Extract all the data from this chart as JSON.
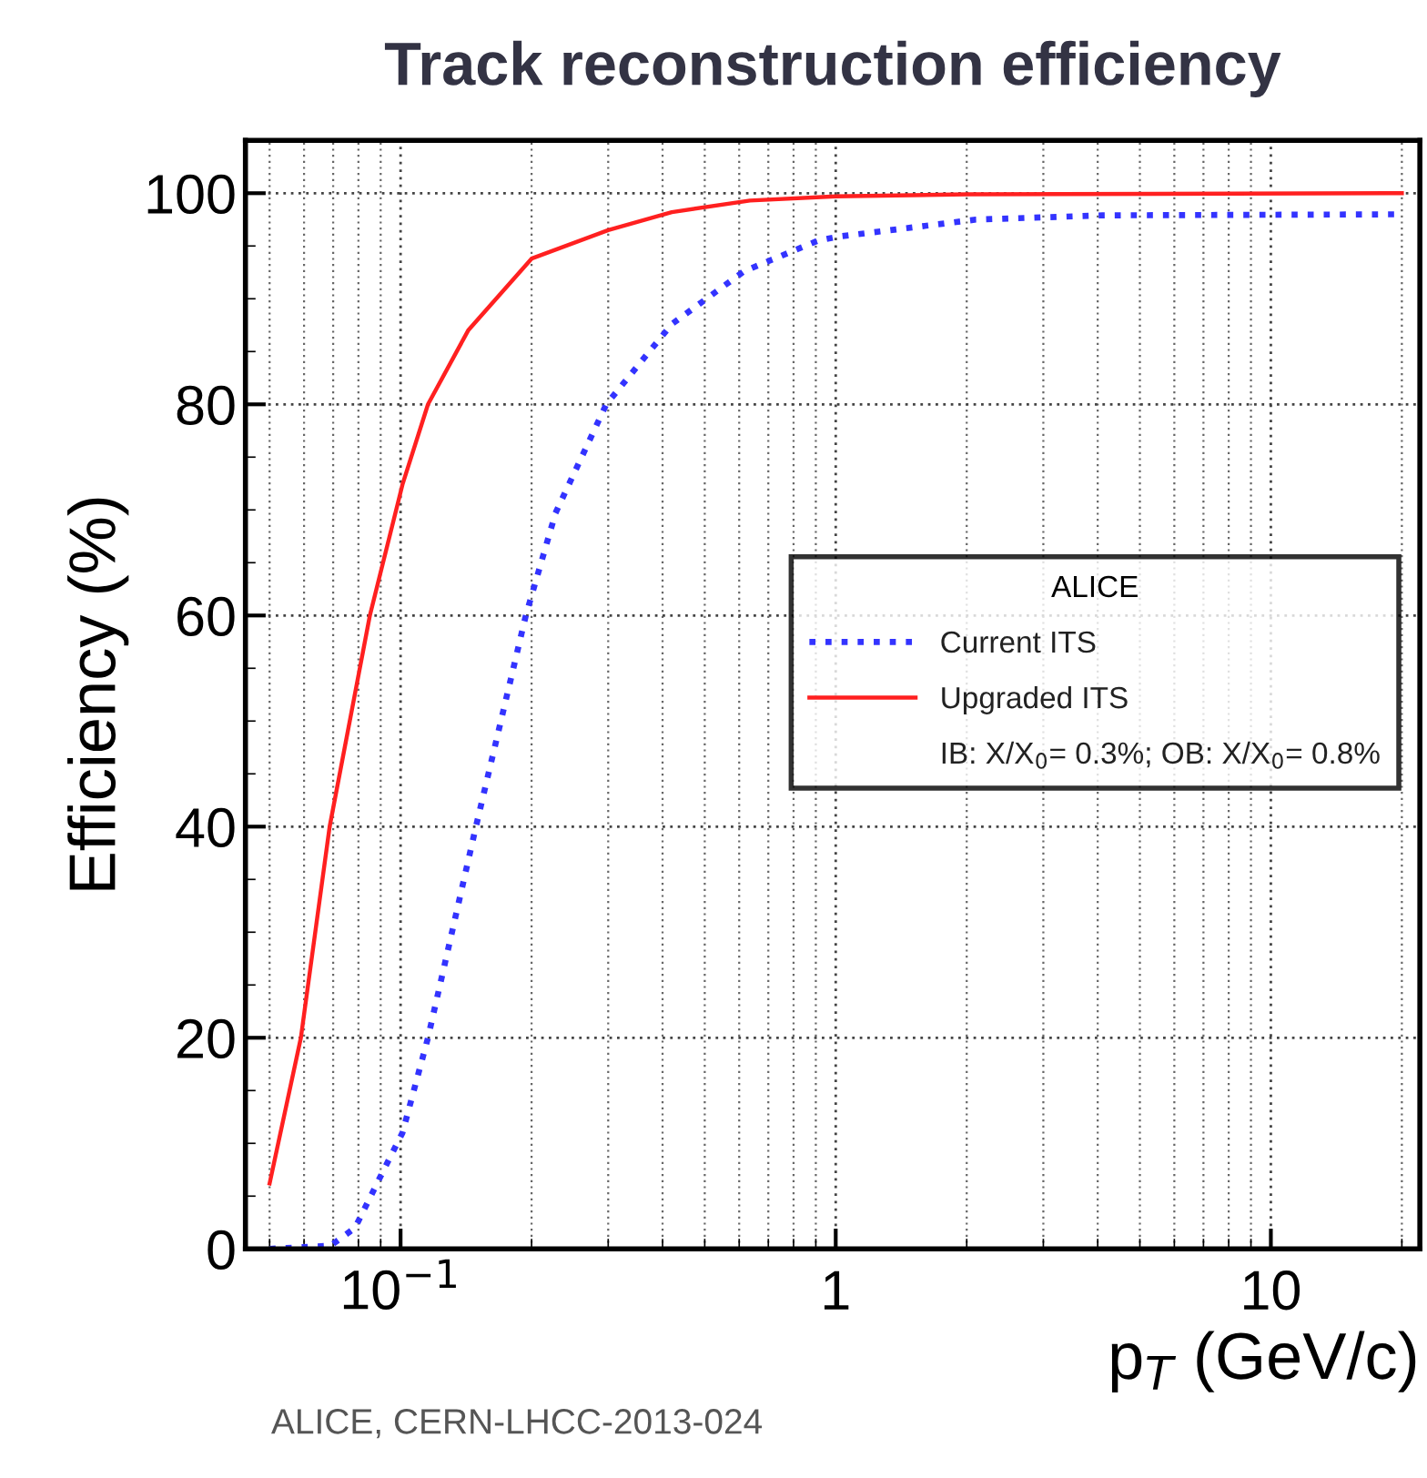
{
  "chart_data": {
    "type": "line",
    "title": "Track reconstruction efficiency",
    "xlabel": "p$_{T}$ (GeV/c)",
    "ylabel": "Efficiency (%)",
    "legend_title": "ALICE",
    "annotations": [
      "IB: X/X$_{0}$= 0.3%; OB: X/X$_{0}$= 0.8%",
      "ALICE, CERN-LHCC-2013-024"
    ],
    "log": "x",
    "xlim": [
      0.044,
      22
    ],
    "ylim": [
      0,
      105
    ],
    "xticks": [
      {
        "value": 0.1,
        "label": "10$^{−1}$"
      },
      1,
      10
    ],
    "yticks": [
      0,
      20,
      40,
      60,
      80,
      100
    ],
    "grid": true,
    "legend": "right",
    "series": [
      {
        "name": "Current ITS",
        "color": "#3333ff",
        "line_style": "dotted",
        "x": [
          0.05,
          0.069,
          0.0786,
          0.09,
          0.101,
          0.1156,
          0.149,
          0.194,
          0.227,
          0.297,
          0.42,
          0.615,
          0.91,
          1.02,
          2.1,
          4.1,
          20
        ],
        "values": [
          0,
          0.3,
          2,
          6.9,
          11,
          20,
          40,
          60,
          69.7,
          80,
          87.6,
          92.6,
          95.5,
          95.9,
          97.5,
          97.9,
          98
        ]
      },
      {
        "name": "Upgraded ITS",
        "color": "#ff2020",
        "line_style": "solid",
        "x": [
          0.05,
          0.059,
          0.0687,
          0.085,
          0.101,
          0.1156,
          0.143,
          0.2,
          0.3,
          0.42,
          0.635,
          1,
          2,
          20
        ],
        "values": [
          6.2,
          20,
          40,
          60,
          72.4,
          80,
          87,
          93.8,
          96.5,
          98.2,
          99.3,
          99.7,
          99.9,
          100
        ]
      }
    ]
  }
}
